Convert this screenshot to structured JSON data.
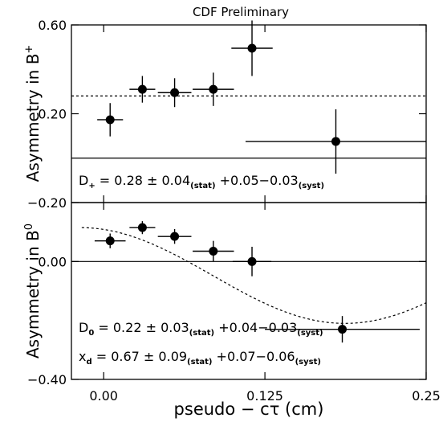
{
  "chart_data": [
    {
      "type": "scatter",
      "panel": "top",
      "title": "CDF Preliminary",
      "ylabel_main": "Asymmetry in B",
      "ylabel_sup": "+",
      "xlim": [
        -0.025,
        0.25
      ],
      "ylim": [
        -0.2,
        0.6
      ],
      "yticks": [
        {
          "value": 0.6,
          "label": "0.60"
        },
        {
          "value": 0.2,
          "label": "0.20"
        },
        {
          "value": -0.2,
          "label": "−0.20"
        }
      ],
      "fit_constant": 0.28,
      "zero_line": 0,
      "points": [
        {
          "x": 0.005,
          "y": 0.173,
          "xerr": 0.01,
          "yerr": 0.075
        },
        {
          "x": 0.03,
          "y": 0.31,
          "xerr": 0.01,
          "yerr": 0.06
        },
        {
          "x": 0.055,
          "y": 0.295,
          "xerr": 0.013,
          "yerr": 0.065
        },
        {
          "x": 0.085,
          "y": 0.31,
          "xerr": 0.016,
          "yerr": 0.075
        },
        {
          "x": 0.115,
          "y": 0.495,
          "xerr": 0.016,
          "yerr": 0.125
        },
        {
          "x": 0.18,
          "y": 0.075,
          "xerr": 0.07,
          "yerr": 0.145
        }
      ],
      "annotation": {
        "sym": "D",
        "sym_sub": "+",
        "value": " = 0.28 ± 0.04",
        "stat_sub": "(stat)",
        "syst_value": " +0.05−0.03",
        "syst_sub": "(syst)"
      }
    },
    {
      "type": "scatter",
      "panel": "bottom",
      "ylabel_main": "Asymmetry in B",
      "ylabel_sup": "0",
      "xlabel": "pseudo − cτ (cm)",
      "xlim": [
        -0.025,
        0.25
      ],
      "ylim": [
        -0.4,
        0.2
      ],
      "xticks": [
        {
          "value": 0.0,
          "label": "0.00"
        },
        {
          "value": 0.125,
          "label": "0.125"
        },
        {
          "value": 0.25,
          "label": "0.25"
        }
      ],
      "yticks": [
        {
          "value": 0.0,
          "label": "0.00"
        },
        {
          "value": -0.4,
          "label": "−0.40"
        }
      ],
      "zero_line": 0,
      "fit_curve": {
        "amplitude": 0.11,
        "x_d": 0.67,
        "tau_cm": 0.0468,
        "offset": -0.095
      },
      "points": [
        {
          "x": 0.005,
          "y": 0.07,
          "xerr": 0.012,
          "yerr": 0.025
        },
        {
          "x": 0.03,
          "y": 0.115,
          "xerr": 0.01,
          "yerr": 0.022
        },
        {
          "x": 0.055,
          "y": 0.085,
          "xerr": 0.013,
          "yerr": 0.025
        },
        {
          "x": 0.085,
          "y": 0.035,
          "xerr": 0.016,
          "yerr": 0.035
        },
        {
          "x": 0.115,
          "y": 0.0,
          "xerr": 0.015,
          "yerr": 0.05
        },
        {
          "x": 0.185,
          "y": -0.23,
          "xerr": 0.06,
          "yerr": 0.045
        }
      ],
      "annotations": [
        {
          "sym": "D",
          "sym_sub": "0",
          "value": " = 0.22 ± 0.03",
          "stat_sub": "(stat)",
          "syst_value": " +0.04−0.03",
          "syst_sub": "(syst)"
        },
        {
          "sym": "x",
          "sym_sub": "d",
          "value": " = 0.67 ± 0.09",
          "stat_sub": "(stat)",
          "syst_value": " +0.07−0.06",
          "syst_sub": "(syst)"
        }
      ]
    }
  ]
}
